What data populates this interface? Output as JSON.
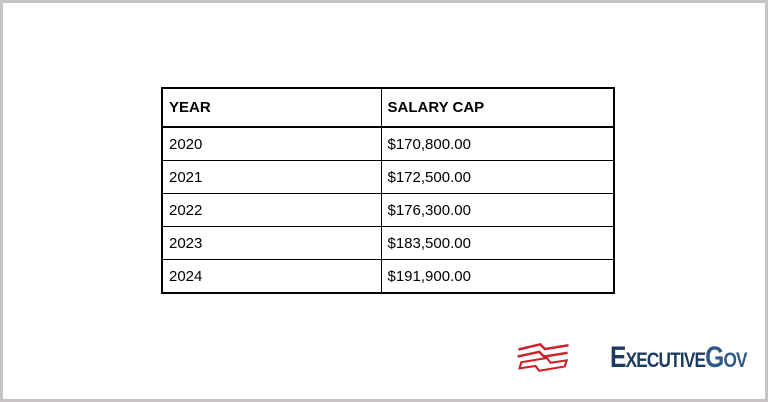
{
  "page": {
    "background": "#ffffff",
    "frame_border_color": "#c9c4c4",
    "table_border_color": "#000000"
  },
  "chart_data": {
    "type": "table",
    "title": "",
    "columns": [
      "YEAR",
      "SALARY CAP"
    ],
    "rows": [
      [
        "2020",
        "$170,800.00"
      ],
      [
        "2021",
        "$172,500.00"
      ],
      [
        "2022",
        "$176,300.00"
      ],
      [
        "2023",
        "$183,500.00"
      ],
      [
        "2024",
        "$191,900.00"
      ]
    ]
  },
  "logo": {
    "text_primary": "Executive",
    "text_secondary": "Gov",
    "color_primary": "#1c3b5e",
    "color_secondary": "#2d5a87",
    "icon": "red-wave-stripes-icon",
    "icon_color": "#ce2027"
  }
}
